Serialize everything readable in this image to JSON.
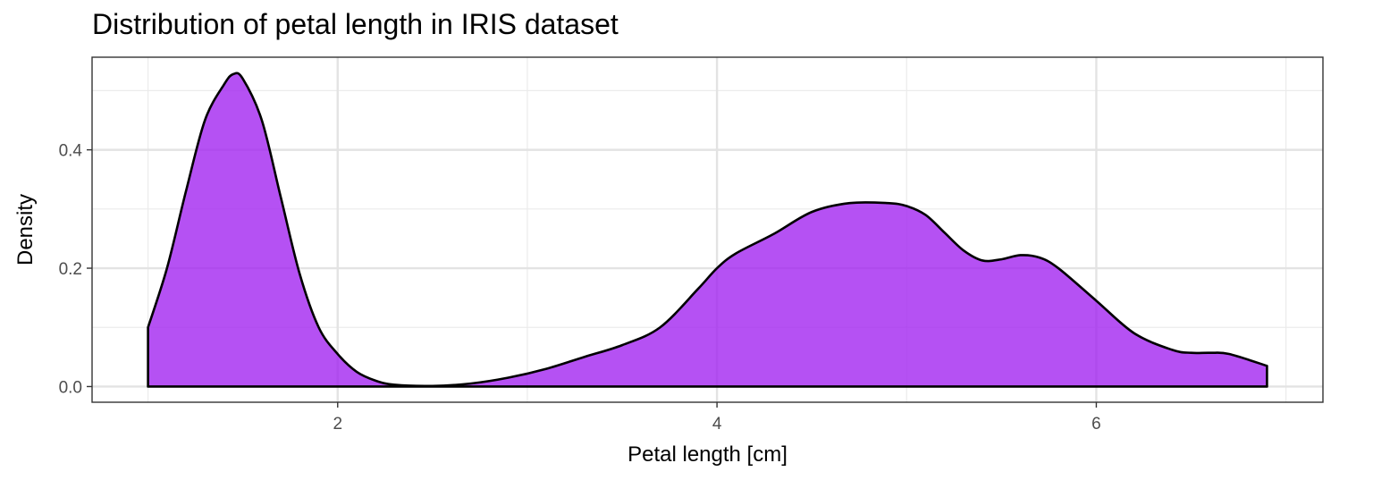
{
  "chart_data": {
    "type": "area",
    "title": "Distribution of petal length in IRIS dataset",
    "xlabel": "Petal length [cm]",
    "ylabel": "Density",
    "xlim": [
      0.705,
      7.195
    ],
    "ylim": [
      -0.0265,
      0.5565
    ],
    "x_ticks": [
      2,
      4,
      6
    ],
    "x_tick_labels": [
      "2",
      "4",
      "6"
    ],
    "y_ticks": [
      0.0,
      0.2,
      0.4
    ],
    "y_tick_labels": [
      "0.0",
      "0.2",
      "0.4"
    ],
    "grid": true,
    "legend": "none",
    "fill_color": "#a020f0",
    "fill_opacity": 0.78,
    "line_color": "#000000",
    "series": [
      {
        "x": [
          1.0,
          1.1,
          1.2,
          1.3,
          1.4,
          1.45,
          1.5,
          1.6,
          1.7,
          1.8,
          1.9,
          2.0,
          2.1,
          2.2,
          2.3,
          2.5,
          2.7,
          2.9,
          3.1,
          3.3,
          3.5,
          3.7,
          3.9,
          4.0,
          4.1,
          4.3,
          4.5,
          4.7,
          4.9,
          5.0,
          5.1,
          5.2,
          5.3,
          5.4,
          5.5,
          5.6,
          5.7,
          5.8,
          6.0,
          6.2,
          6.4,
          6.5,
          6.6,
          6.7,
          6.9
        ],
        "y": [
          0.1,
          0.2,
          0.33,
          0.45,
          0.51,
          0.528,
          0.52,
          0.45,
          0.32,
          0.19,
          0.1,
          0.055,
          0.025,
          0.01,
          0.003,
          0.001,
          0.005,
          0.015,
          0.03,
          0.05,
          0.07,
          0.1,
          0.165,
          0.2,
          0.225,
          0.258,
          0.295,
          0.31,
          0.31,
          0.305,
          0.29,
          0.26,
          0.23,
          0.213,
          0.215,
          0.222,
          0.218,
          0.2,
          0.145,
          0.09,
          0.062,
          0.057,
          0.057,
          0.055,
          0.035
        ]
      }
    ]
  }
}
